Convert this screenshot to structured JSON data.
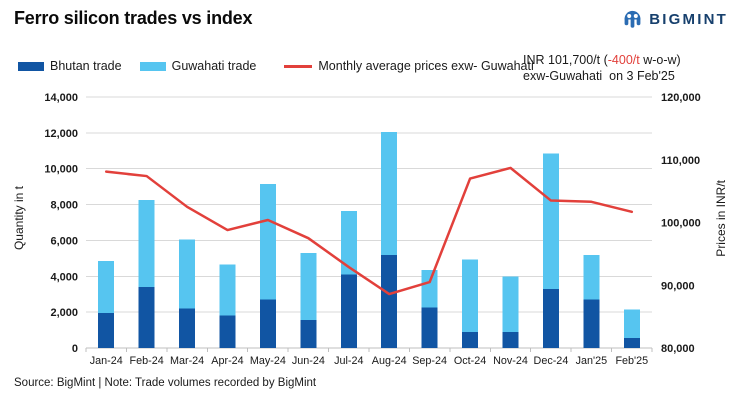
{
  "header": {
    "title": "Ferro silicon trades vs index",
    "brand": "BIGMINT"
  },
  "annotation": {
    "prefix": "INR 101,700/t (",
    "highlight": "-400/t",
    "suffix": " w-o-w)",
    "line2": "exw-Guwahati  on 3 Feb'25"
  },
  "source_note": "Source: BigMint | Note: Trade volumes recorded by BigMint",
  "colors": {
    "bhutan_bar": "#1155a3",
    "guwahati_bar": "#56c5f0",
    "price_line": "#e2403b",
    "negative_red": "#e2403b",
    "grid": "#d9d9d9",
    "axis_line": "#bfbfbf",
    "text": "#1a1a1a",
    "brand_navy": "#17406d",
    "brand_icon_blue": "#2b6cb2"
  },
  "chart_data": {
    "type": "bar",
    "stacked": true,
    "grid": true,
    "legend_position": "top",
    "title": "Ferro silicon trades vs index",
    "categories": [
      "Jan-24",
      "Feb-24",
      "Mar-24",
      "Apr-24",
      "May-24",
      "Jun-24",
      "Jul-24",
      "Aug-24",
      "Sep-24",
      "Oct-24",
      "Nov-24",
      "Dec-24",
      "Jan'25",
      "Feb'25"
    ],
    "series": [
      {
        "name": "Bhutan trade",
        "type": "bar",
        "axis": "left",
        "color": "#1155a3",
        "values": [
          1950,
          3400,
          2200,
          1800,
          2700,
          1550,
          4100,
          5200,
          2250,
          900,
          900,
          3300,
          2700,
          550
        ]
      },
      {
        "name": "Guwahati trade",
        "type": "bar",
        "axis": "left",
        "color": "#56c5f0",
        "values": [
          2900,
          4850,
          3850,
          2850,
          6450,
          3750,
          3550,
          6850,
          2100,
          4050,
          3100,
          7550,
          2500,
          1600
        ]
      },
      {
        "name": "Monthly average prices exw- Guwahati",
        "type": "line",
        "axis": "right",
        "color": "#e2403b",
        "values": [
          108100,
          107400,
          102500,
          98800,
          100400,
          97500,
          92900,
          88600,
          90500,
          107000,
          108700,
          103500,
          103300,
          101700
        ]
      }
    ],
    "stacked_totals": [
      4850,
      8250,
      6050,
      4650,
      9150,
      5300,
      7650,
      12050,
      4350,
      4950,
      4000,
      10850,
      5200,
      2150
    ],
    "left_axis": {
      "label": "Quantity in t",
      "min": 0,
      "max": 14000,
      "step": 2000
    },
    "right_axis": {
      "label": "Prices in INR/t",
      "min": 80000,
      "max": 120000,
      "step": 10000
    }
  }
}
